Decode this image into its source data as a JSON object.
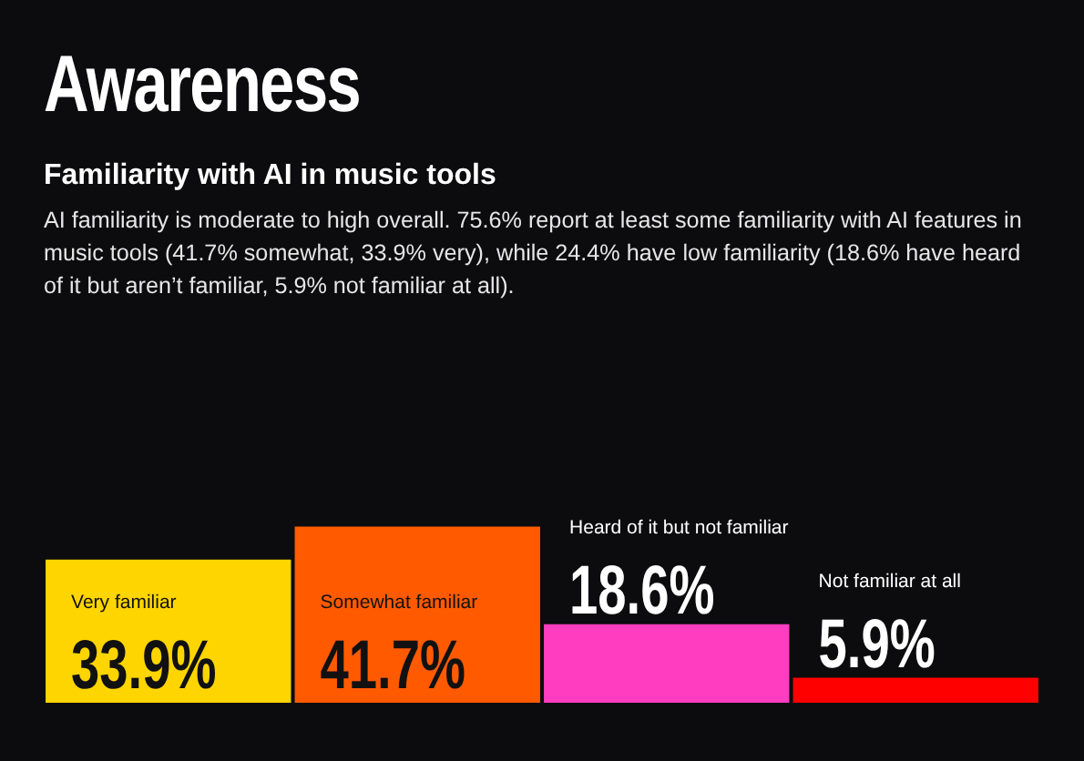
{
  "chart_data": {
    "type": "bar",
    "title": "Awareness",
    "subtitle": "Familiarity with AI in music tools",
    "annotations": [
      "AI familiarity is moderate to high overall. 75.6% report at least some familiarity with AI features in music tools (41.7% somewhat, 33.9% very), while 24.4% have low familiarity (18.6% have heard of it but aren’t familiar, 5.9% not familiar at all)."
    ],
    "categories": [
      "Very familiar",
      "Somewhat familiar",
      "Heard of it but not familiar",
      "Not familiar at all"
    ],
    "values": [
      33.9,
      41.7,
      18.6,
      5.9
    ],
    "colors": [
      "#ffd500",
      "#ff5a00",
      "#ff3dc0",
      "#ff0000"
    ],
    "value_labels": [
      "33.9%",
      "41.7%",
      "18.6%",
      "5.9%"
    ],
    "legend": false
  }
}
